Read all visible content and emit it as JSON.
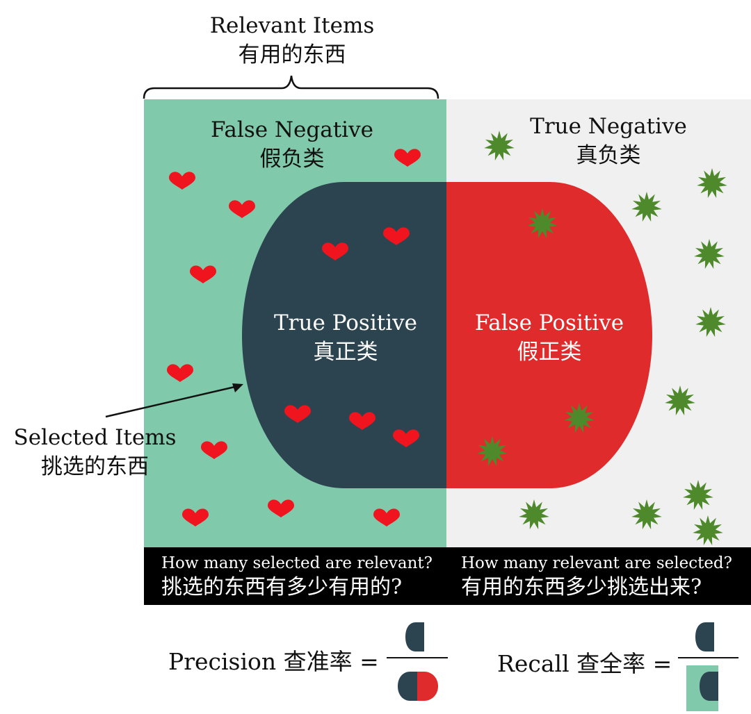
{
  "relevant": {
    "en": "Relevant Items",
    "cn": "有用的东西"
  },
  "selected": {
    "en": "Selected Items",
    "cn": "挑选的东西"
  },
  "regions": {
    "false_negative": {
      "en": "False Negative",
      "cn": "假负类"
    },
    "true_negative": {
      "en": "True Negative",
      "cn": "真负类"
    },
    "true_positive": {
      "en": "True Positive",
      "cn": "真正类"
    },
    "false_positive": {
      "en": "False Positive",
      "cn": "假正类"
    }
  },
  "questions": {
    "precision_q": {
      "en": "How many selected are relevant?",
      "cn": "挑选的东西有多少有用的?"
    },
    "recall_q": {
      "en": "How many relevant are selected?",
      "cn": "有用的东西多少挑选出来?"
    }
  },
  "formulas": {
    "precision": {
      "label": "Precision 查准率 ="
    },
    "recall": {
      "label": "Recall 查全率 ="
    }
  },
  "colors": {
    "relevant_green": "#80c9aa",
    "negative_gray": "#f0f0f0",
    "true_positive": "#2c4450",
    "false_positive": "#df2b2b",
    "heart": "#f0141e",
    "star": "#4e8a2c",
    "bar": "#000000"
  },
  "icons": {
    "relevant_marker": "heart-icon",
    "irrelevant_marker": "star-burst-icon"
  }
}
